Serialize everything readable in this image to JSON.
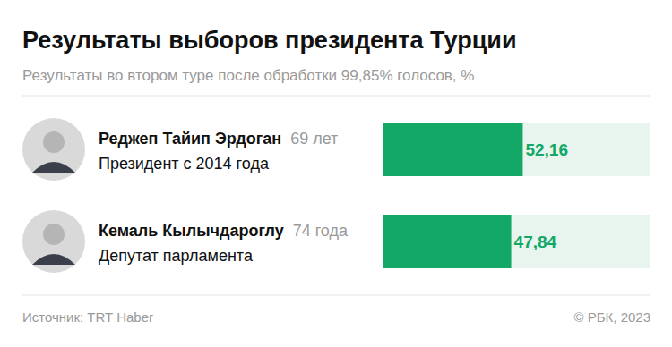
{
  "chart_data": {
    "type": "bar",
    "orientation": "horizontal",
    "title": "Результаты выборов президента Турции",
    "subtitle": "Результаты во втором туре после обработки 99,85% голосов, %",
    "categories": [
      "Реджеп Тайип Эрдоган",
      "Кемаль Кылычдароглу"
    ],
    "ages": [
      "69 лет",
      "74 года"
    ],
    "descriptions": [
      "Президент с 2014 года",
      "Депутат парламента"
    ],
    "values": [
      52.16,
      47.84
    ],
    "value_labels": [
      "52,16",
      "47,84"
    ],
    "data_labels": true,
    "xlim": [
      0,
      100
    ],
    "tick_labels": false,
    "color": "#13a866",
    "source": "Источник: TRT Haber",
    "credit": "© РБК, 2023"
  }
}
